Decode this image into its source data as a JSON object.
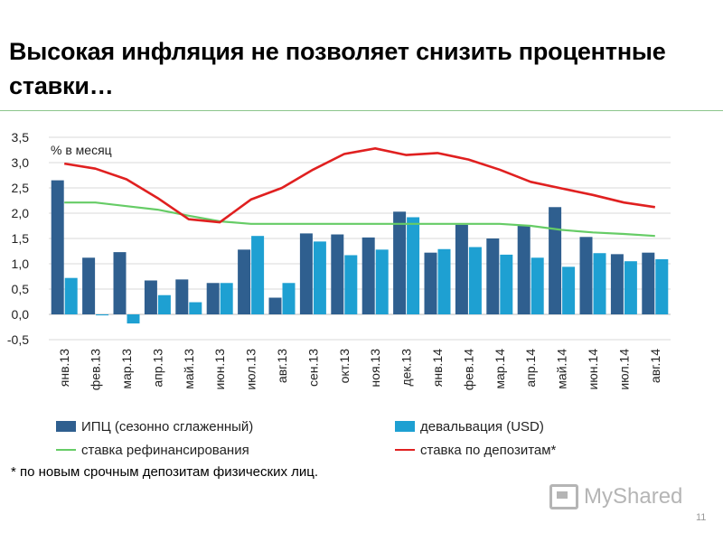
{
  "slide": {
    "title": "Высокая инфляция не позволяет снизить процентные ставки…",
    "footnote": "* по новым срочным депозитам физических лиц.",
    "page_number": "11",
    "watermark": "MyShared"
  },
  "chart_data": {
    "type": "bar",
    "unit_label": "% в месяц",
    "categories": [
      "янв.13",
      "фев.13",
      "мар.13",
      "апр.13",
      "май.13",
      "июн.13",
      "июл.13",
      "авг.13",
      "сен.13",
      "окт.13",
      "ноя.13",
      "дек.13",
      "янв.14",
      "фев.14",
      "мар.14",
      "апр.14",
      "май.14",
      "июн.14",
      "июл.14",
      "авг.14"
    ],
    "ylim": [
      -0.5,
      3.5
    ],
    "yticks": [
      "3,5",
      "3,0",
      "2,5",
      "2,0",
      "1,5",
      "1,0",
      "0,5",
      "0,0",
      "-0,5"
    ],
    "ytick_values": [
      3.5,
      3.0,
      2.5,
      2.0,
      1.5,
      1.0,
      0.5,
      0.0,
      -0.5
    ],
    "grid": true,
    "legend_position": "bottom",
    "bar_series": [
      {
        "name": "ИПЦ (сезонно сглаженный)",
        "color": "#2f5f8f",
        "values": [
          2.65,
          1.12,
          1.23,
          0.67,
          0.69,
          0.62,
          1.28,
          0.33,
          1.6,
          1.58,
          1.52,
          2.03,
          1.22,
          1.77,
          1.5,
          1.75,
          2.12,
          1.53,
          1.19,
          1.22
        ]
      },
      {
        "name": "девальвация (USD)",
        "color": "#1ea0d2",
        "values": [
          0.72,
          -0.02,
          -0.18,
          0.38,
          0.24,
          0.62,
          1.55,
          0.62,
          1.44,
          1.17,
          1.28,
          1.92,
          1.29,
          1.33,
          1.18,
          1.12,
          0.94,
          1.21,
          1.05,
          1.09
        ]
      }
    ],
    "line_series": [
      {
        "name": "ставка рефинансирования",
        "color": "#66cc66",
        "values": [
          2.21,
          2.21,
          2.14,
          2.07,
          1.95,
          1.84,
          1.79,
          1.79,
          1.79,
          1.79,
          1.79,
          1.79,
          1.79,
          1.79,
          1.79,
          1.75,
          1.67,
          1.62,
          1.59,
          1.55
        ]
      },
      {
        "name": "ставка по депозитам*",
        "color": "#e02020",
        "values": [
          2.98,
          2.88,
          2.67,
          2.3,
          1.88,
          1.82,
          2.27,
          2.5,
          2.86,
          3.17,
          3.28,
          3.15,
          3.19,
          3.06,
          2.86,
          2.62,
          2.49,
          2.36,
          2.21,
          2.12
        ]
      }
    ]
  }
}
